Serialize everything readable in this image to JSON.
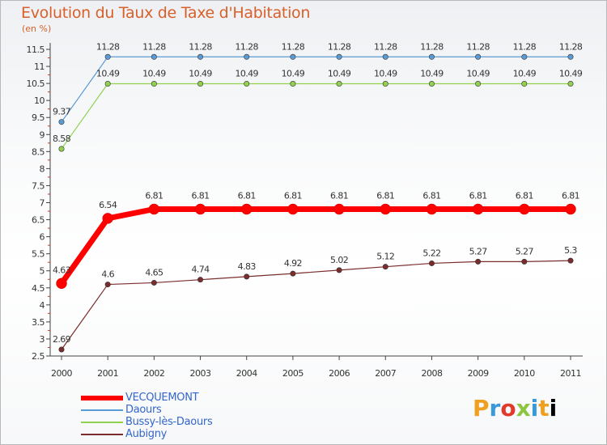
{
  "chart_data": {
    "type": "line",
    "title": "Evolution du Taux de Taxe d'Habitation",
    "subtitle": "(en %)",
    "xlabel": "",
    "ylabel": "",
    "x": [
      "2000",
      "2001",
      "2002",
      "2003",
      "2004",
      "2005",
      "2006",
      "2007",
      "2008",
      "2009",
      "2010",
      "2011"
    ],
    "ylim": [
      2.5,
      11.5
    ],
    "yticks": [
      "2.5",
      "3",
      "3.5",
      "4",
      "4.5",
      "5",
      "5.5",
      "6",
      "6.5",
      "7",
      "7.5",
      "8",
      "8.5",
      "9",
      "9.5",
      "10",
      "10.5",
      "11",
      "11.5"
    ],
    "grid": false,
    "legend_position": "bottom-left",
    "series": [
      {
        "name": "VECQUEMONT",
        "color": "#ff0000",
        "values": [
          4.63,
          6.54,
          6.81,
          6.81,
          6.81,
          6.81,
          6.81,
          6.81,
          6.81,
          6.81,
          6.81,
          6.81
        ],
        "labels": [
          "4.63",
          "6.54",
          "6.81",
          "6.81",
          "6.81",
          "6.81",
          "6.81",
          "6.81",
          "6.81",
          "6.81",
          "6.81",
          "6.81"
        ]
      },
      {
        "name": "Daours",
        "color": "#5b9bd5",
        "values": [
          9.37,
          11.28,
          11.28,
          11.28,
          11.28,
          11.28,
          11.28,
          11.28,
          11.28,
          11.28,
          11.28,
          11.28
        ],
        "labels": [
          "9.37",
          "11.28",
          "11.28",
          "11.28",
          "11.28",
          "11.28",
          "11.28",
          "11.28",
          "11.28",
          "11.28",
          "11.28",
          "11.28"
        ]
      },
      {
        "name": "Bussy-lès-Daours",
        "color": "#92d050",
        "values": [
          8.58,
          10.49,
          10.49,
          10.49,
          10.49,
          10.49,
          10.49,
          10.49,
          10.49,
          10.49,
          10.49,
          10.49
        ],
        "labels": [
          "8.58",
          "10.49",
          "10.49",
          "10.49",
          "10.49",
          "10.49",
          "10.49",
          "10.49",
          "10.49",
          "10.49",
          "10.49",
          "10.49"
        ]
      },
      {
        "name": "Aubigny",
        "color": "#7b2c2c",
        "values": [
          2.69,
          4.6,
          4.65,
          4.74,
          4.83,
          4.92,
          5.02,
          5.12,
          5.22,
          5.27,
          5.27,
          5.3
        ],
        "labels": [
          "2.69",
          "4.6",
          "4.65",
          "4.74",
          "4.83",
          "4.92",
          "5.02",
          "5.12",
          "5.22",
          "5.27",
          "5.27",
          "5.3"
        ]
      }
    ]
  },
  "logo": {
    "letters": [
      "P",
      "r",
      "o",
      "x",
      "i",
      "t",
      "i"
    ]
  }
}
